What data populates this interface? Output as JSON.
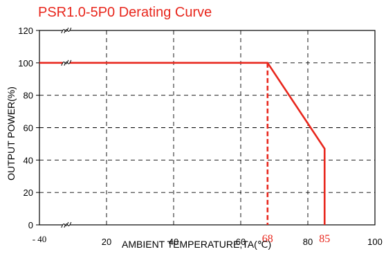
{
  "chart_data": {
    "type": "line",
    "title": "PSR1.0-5P0 Derating Curve",
    "xlabel": "AMBIENT TEMPERATURE,TA(℃)",
    "ylabel": "OUTPUT POWER(%)",
    "xlim": [
      0,
      100
    ],
    "ylim": [
      0,
      120
    ],
    "x_ticks": [
      {
        "value": 0,
        "label": "- 40",
        "style": "serif"
      },
      {
        "value": 20,
        "label": "20"
      },
      {
        "value": 40,
        "label": "40"
      },
      {
        "value": 60,
        "label": "60"
      },
      {
        "value": 68,
        "label": "68",
        "style": "red-serif"
      },
      {
        "value": 80,
        "label": "80"
      },
      {
        "value": 85,
        "label": "85",
        "style": "red-serif"
      },
      {
        "value": 100,
        "label": "100"
      }
    ],
    "y_ticks": [
      0,
      20,
      40,
      60,
      80,
      100,
      120
    ],
    "grid": "dashed",
    "axis_break": {
      "x": 8,
      "y_levels": [
        0,
        100,
        120
      ]
    },
    "series": [
      {
        "color": "#e8261c",
        "x": [
          0,
          68,
          85,
          85
        ],
        "y": [
          100,
          100,
          47,
          0
        ],
        "solid": [
          true,
          true,
          true
        ]
      },
      {
        "color": "#e8261c",
        "x": [
          68,
          68
        ],
        "y": [
          100,
          0
        ],
        "dashed": true
      }
    ],
    "colors": {
      "curve": "#e8261c",
      "grid": "#000000"
    }
  }
}
